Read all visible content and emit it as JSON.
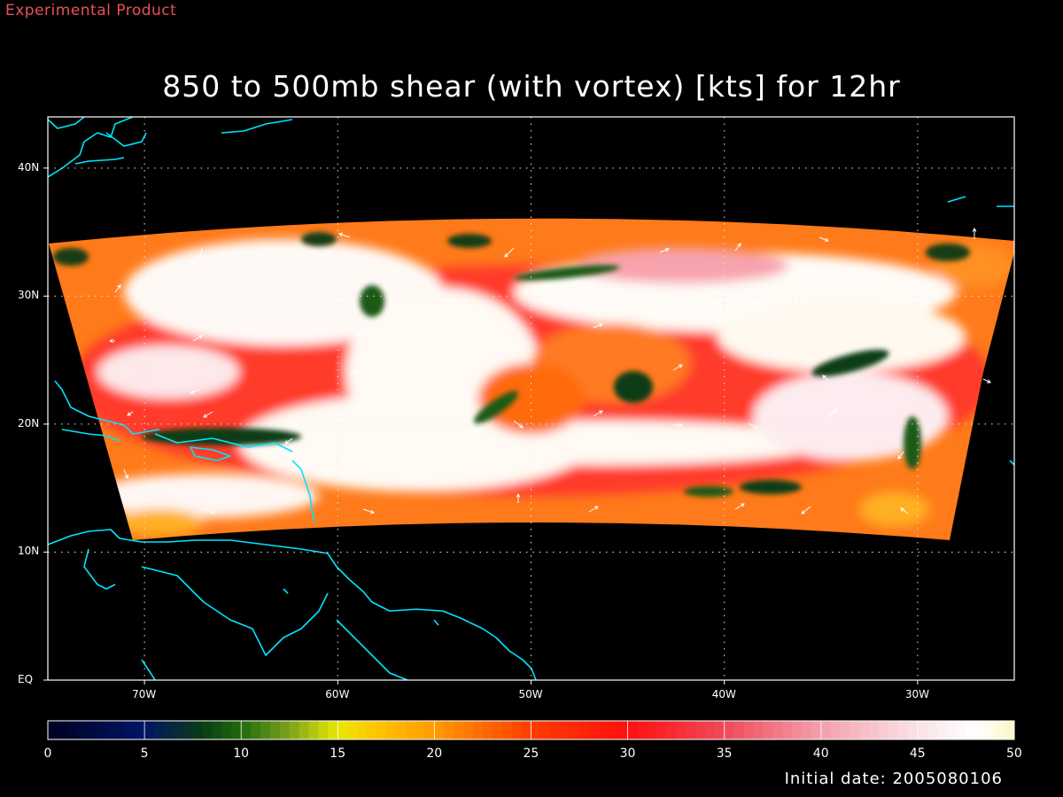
{
  "watermark": "Experimental Product",
  "title": "850 to 500mb shear (with vortex) [kts] for 12hr",
  "initial_date": "Initial date: 2005080106",
  "map": {
    "lon_range": [
      -75,
      -25
    ],
    "lat_range": [
      0,
      44
    ],
    "lat_ticks": [
      {
        "value": 40,
        "label": "40N"
      },
      {
        "value": 30,
        "label": "30N"
      },
      {
        "value": 20,
        "label": "20N"
      },
      {
        "value": 10,
        "label": "10N"
      },
      {
        "value": 0,
        "label": "EQ"
      }
    ],
    "lon_ticks": [
      {
        "value": -70,
        "label": "70W"
      },
      {
        "value": -60,
        "label": "60W"
      },
      {
        "value": -50,
        "label": "50W"
      },
      {
        "value": -40,
        "label": "40W"
      },
      {
        "value": -30,
        "label": "30W"
      }
    ],
    "gridlines": "dotted",
    "coastline_color": "#00e5ff",
    "vector_color": "#ffffff"
  },
  "colorbar": {
    "min": 0,
    "max": 50,
    "labels": [
      "0",
      "5",
      "10",
      "15",
      "20",
      "25",
      "30",
      "35",
      "40",
      "45",
      "50"
    ],
    "stops": [
      {
        "value": 0,
        "color": "#000020"
      },
      {
        "value": 5,
        "color": "#001466"
      },
      {
        "value": 8,
        "color": "#0a3c14"
      },
      {
        "value": 10,
        "color": "#1f6b0c"
      },
      {
        "value": 12.5,
        "color": "#7ca31c"
      },
      {
        "value": 15,
        "color": "#e8e800"
      },
      {
        "value": 17,
        "color": "#ffc400"
      },
      {
        "value": 20,
        "color": "#ff9a00"
      },
      {
        "value": 25,
        "color": "#ff3c00"
      },
      {
        "value": 30,
        "color": "#ff1010"
      },
      {
        "value": 35,
        "color": "#f04a5a"
      },
      {
        "value": 40,
        "color": "#f3a0ac"
      },
      {
        "value": 45,
        "color": "#fbe2e6"
      },
      {
        "value": 48,
        "color": "#ffffff"
      },
      {
        "value": 50,
        "color": "#fdf6c6"
      }
    ]
  }
}
